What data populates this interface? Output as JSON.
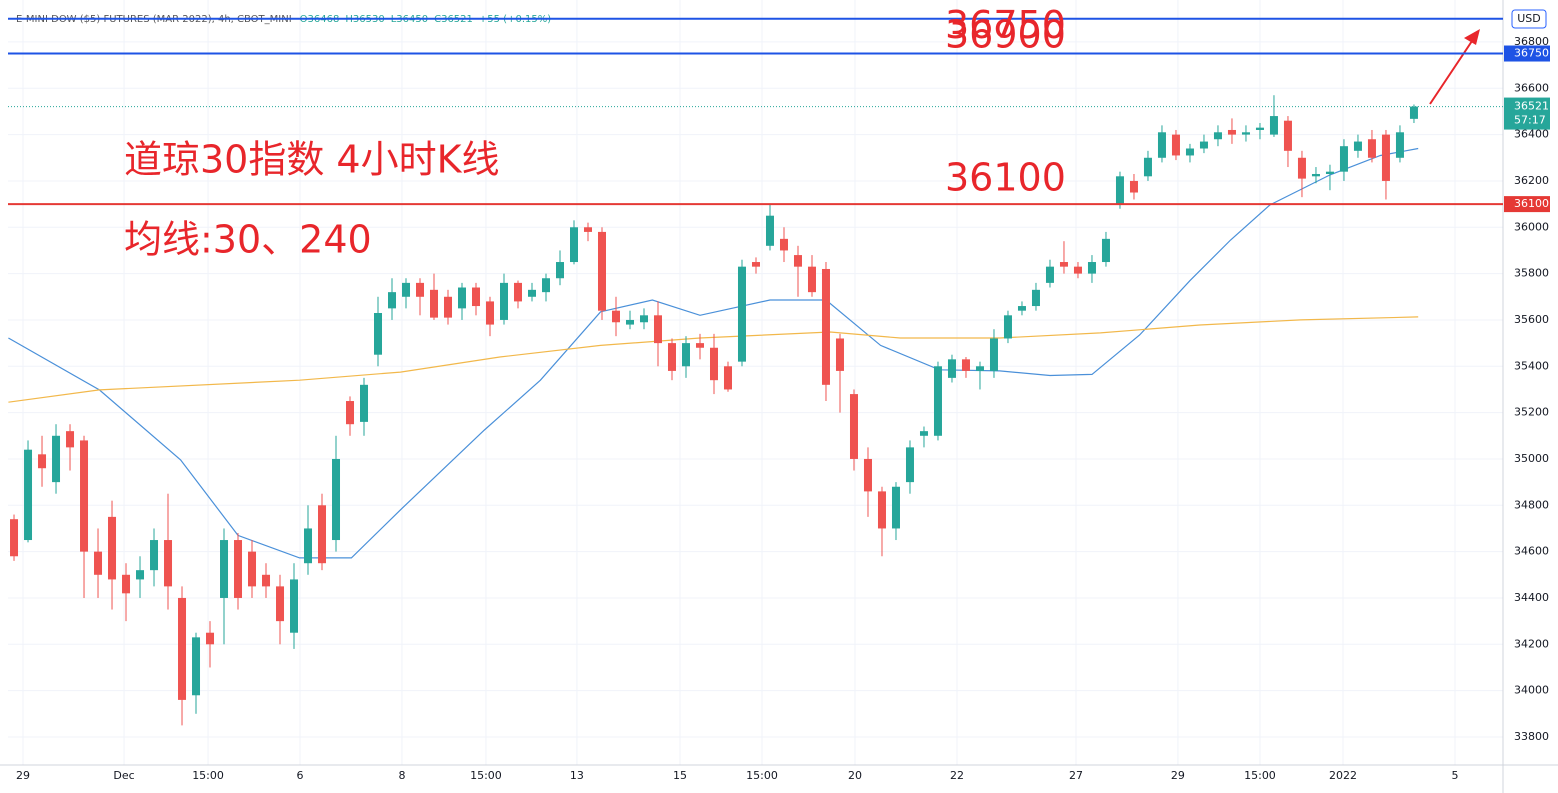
{
  "chart_data": {
    "type": "candlestick",
    "header": "E-MINI DOW ($5) FUTURES (MAR 2022), 4h, CBOT_MINI",
    "header_values": [
      "O36468",
      "H36530",
      "L36450",
      "C36521",
      "+55 (+0.15%)"
    ],
    "currency": "USD",
    "countdown": "57:17",
    "title": "道琼30指数 4小时K线",
    "subtitle": "均线:30、240",
    "up_color": "#26a69a",
    "down_color": "#ef5350",
    "xlim": [
      -0.43,
      106.36
    ],
    "xticks": [
      {
        "value": 0.64,
        "label": "29"
      },
      {
        "value": 7.86,
        "label": "Dec"
      },
      {
        "value": 13.86,
        "label": "15:00"
      },
      {
        "value": 20.43,
        "label": "6"
      },
      {
        "value": 27.71,
        "label": "8"
      },
      {
        "value": 33.71,
        "label": "15:00"
      },
      {
        "value": 40.21,
        "label": "13"
      },
      {
        "value": 47.57,
        "label": "15"
      },
      {
        "value": 53.43,
        "label": "15:00"
      },
      {
        "value": 60.07,
        "label": "20"
      },
      {
        "value": 67.36,
        "label": "22"
      },
      {
        "value": 75.86,
        "label": "27"
      },
      {
        "value": 83.14,
        "label": "29"
      },
      {
        "value": 89,
        "label": "15:00"
      },
      {
        "value": 94.93,
        "label": "2022"
      },
      {
        "value": 102.93,
        "label": "5"
      }
    ],
    "ylim": [
      33679,
      36981
    ],
    "yticks": [
      33800,
      34000,
      34200,
      34400,
      34600,
      34800,
      35000,
      35200,
      35400,
      35600,
      35800,
      36000,
      36200,
      36400,
      36600,
      36800
    ],
    "grid": true,
    "candles": {
      "open": [
        34740,
        34650,
        35020,
        34900,
        35120,
        35080,
        34600,
        34750,
        34500,
        34480,
        34520,
        34650,
        34400,
        33980,
        34250,
        34400,
        34650,
        34600,
        34500,
        34450,
        34250,
        34550,
        34800,
        34650,
        35250,
        35160,
        35450,
        35650,
        35700,
        35760,
        35730,
        35700,
        35650,
        35740,
        35680,
        35600,
        35760,
        35700,
        35720,
        35780,
        35850,
        36000,
        35980,
        35640,
        35580,
        35590,
        35620,
        35500,
        35400,
        35500,
        35480,
        35400,
        35420,
        35850,
        35920,
        35950,
        35880,
        35830,
        35820,
        35520,
        35280,
        35000,
        34860,
        34700,
        34900,
        35100,
        35100,
        35350,
        35430,
        35380,
        35380,
        35520,
        35640,
        35660,
        35760,
        35850,
        35830,
        35800,
        35850,
        36100,
        36200,
        36220,
        36300,
        36400,
        36310,
        36340,
        36380,
        36420,
        36400,
        36420,
        36400,
        36460,
        36300,
        36220,
        36230,
        36240,
        36330,
        36380,
        36400,
        36300,
        36468
      ],
      "high": [
        34760,
        35080,
        35100,
        35150,
        35150,
        35100,
        34700,
        34820,
        34550,
        34580,
        34700,
        34850,
        34450,
        34250,
        34300,
        34700,
        34680,
        34650,
        34550,
        34500,
        34550,
        34800,
        34850,
        35100,
        35270,
        35350,
        35700,
        35780,
        35780,
        35780,
        35800,
        35730,
        35760,
        35760,
        35700,
        35800,
        35770,
        35760,
        35800,
        35900,
        36030,
        36020,
        36000,
        35700,
        35640,
        35650,
        35680,
        35520,
        35530,
        35540,
        35540,
        35420,
        35860,
        35870,
        36100,
        36000,
        35920,
        35880,
        35850,
        35540,
        35300,
        35050,
        34880,
        34900,
        35080,
        35140,
        35420,
        35450,
        35440,
        35420,
        35560,
        35640,
        35680,
        35760,
        35860,
        35940,
        35850,
        35880,
        35980,
        36240,
        36230,
        36330,
        36440,
        36420,
        36360,
        36400,
        36440,
        36470,
        36440,
        36450,
        36570,
        36480,
        36330,
        36260,
        36270,
        36380,
        36400,
        36420,
        36420,
        36440,
        36530
      ],
      "low": [
        34560,
        34640,
        34880,
        34850,
        34950,
        34400,
        34400,
        34350,
        34300,
        34400,
        34450,
        34350,
        33850,
        33900,
        34100,
        34200,
        34350,
        34400,
        34400,
        34200,
        34180,
        34500,
        34520,
        34600,
        35100,
        35100,
        35400,
        35600,
        35650,
        35620,
        35600,
        35580,
        35600,
        35620,
        35530,
        35580,
        35650,
        35680,
        35680,
        35750,
        35840,
        35940,
        35600,
        35530,
        35560,
        35560,
        35400,
        35340,
        35350,
        35430,
        35280,
        35290,
        35400,
        35800,
        35900,
        35850,
        35700,
        35700,
        35250,
        35200,
        34950,
        34750,
        34580,
        34650,
        34850,
        35050,
        35080,
        35330,
        35350,
        35300,
        35350,
        35500,
        35620,
        35640,
        35740,
        35800,
        35780,
        35760,
        35830,
        36080,
        36120,
        36200,
        36280,
        36290,
        36280,
        36320,
        36350,
        36360,
        36370,
        36380,
        36390,
        36260,
        36130,
        36190,
        36160,
        36200,
        36300,
        36280,
        36120,
        36280,
        36450
      ],
      "close": [
        34580,
        35040,
        34960,
        35100,
        35050,
        34600,
        34500,
        34480,
        34420,
        34520,
        34650,
        34450,
        33960,
        34230,
        34200,
        34650,
        34400,
        34450,
        34450,
        34300,
        34480,
        34700,
        34550,
        35000,
        35150,
        35320,
        35630,
        35720,
        35760,
        35700,
        35610,
        35610,
        35740,
        35660,
        35580,
        35760,
        35680,
        35730,
        35780,
        35850,
        36000,
        35980,
        35640,
        35590,
        35600,
        35620,
        35500,
        35380,
        35500,
        35480,
        35340,
        35300,
        35830,
        35830,
        36050,
        35900,
        35830,
        35720,
        35320,
        35380,
        35000,
        34860,
        34700,
        34880,
        35050,
        35120,
        35400,
        35430,
        35380,
        35400,
        35520,
        35620,
        35660,
        35730,
        35830,
        35830,
        35800,
        35850,
        35950,
        36220,
        36150,
        36300,
        36410,
        36310,
        36340,
        36370,
        36410,
        36400,
        36410,
        36430,
        36480,
        36330,
        36210,
        36230,
        36240,
        36350,
        36370,
        36300,
        36200,
        36410,
        36521
      ]
    },
    "lines": [
      {
        "color": "#4a90d9",
        "x": [
          -0.4,
          6.1,
          11.9,
          16,
          20.4,
          24.1,
          27.6,
          33.6,
          37.6,
          41.9,
          45.6,
          49,
          54,
          58,
          61.9,
          66.1,
          70.4,
          74,
          77,
          80.4,
          84,
          86.9,
          89.7,
          94,
          97.6,
          100.3
        ],
        "values": [
          35522,
          35298,
          34996,
          34670,
          34573,
          34573,
          34780,
          35125,
          35340,
          35635,
          35686,
          35620,
          35686,
          35686,
          35490,
          35385,
          35380,
          35360,
          35365,
          35535,
          35770,
          35945,
          36096,
          36226,
          36310,
          36340
        ]
      },
      {
        "color": "#f2b84b",
        "x": [
          -0.4,
          6.1,
          20.4,
          27.6,
          34.7,
          41.9,
          49,
          58.3,
          63.3,
          70.4,
          77.6,
          84.7,
          91.9,
          100.3
        ],
        "values": [
          35245,
          35298,
          35340,
          35375,
          35440,
          35490,
          35522,
          35548,
          35522,
          35522,
          35544,
          35578,
          35600,
          35613
        ]
      }
    ],
    "hlines": [
      {
        "value": 36900,
        "color": "#1e53e5",
        "badge": false
      },
      {
        "value": 36750,
        "color": "#1e53e5",
        "badge": true
      },
      {
        "value": 36100,
        "color": "#e53935",
        "badge": true
      }
    ]
  }
}
